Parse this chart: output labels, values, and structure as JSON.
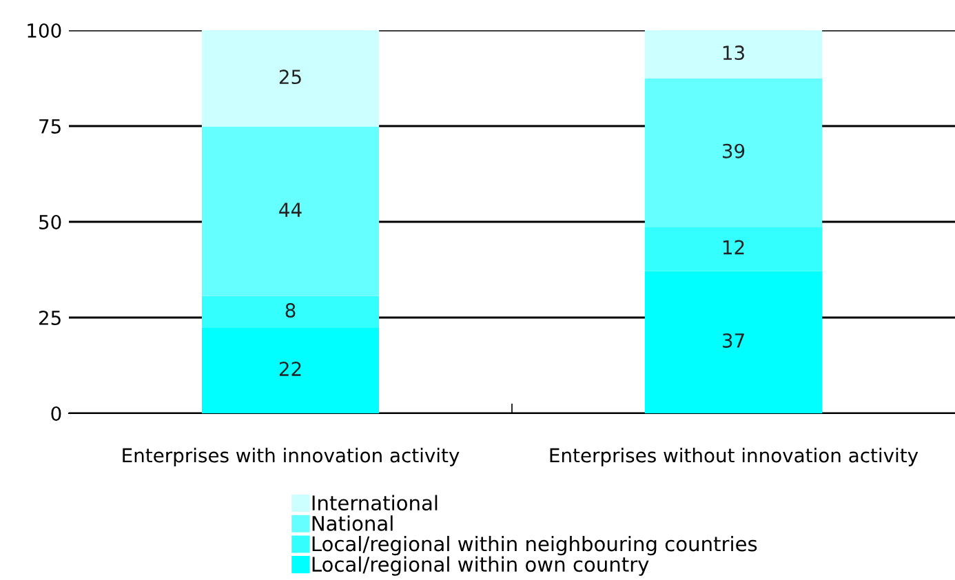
{
  "chart_data": {
    "type": "bar",
    "stacked": true,
    "categories": [
      "Enterprises with innovation activity",
      "Enterprises without innovation activity"
    ],
    "series": [
      {
        "name": "Local/regional within own country",
        "color": "#00ffff",
        "values": [
          22.3,
          37.1
        ],
        "value_labels": [
          "22",
          "37"
        ]
      },
      {
        "name": "Local/regional within neighbouring countries",
        "color": "#33ffff",
        "values": [
          8.3,
          11.6
        ],
        "value_labels": [
          "8",
          "12"
        ]
      },
      {
        "name": "National",
        "color": "#66ffff",
        "values": [
          44.2,
          38.7
        ],
        "value_labels": [
          "44",
          "39"
        ]
      },
      {
        "name": "International",
        "color": "#ccffff",
        "values": [
          25.2,
          12.6
        ],
        "value_labels": [
          "25",
          "13"
        ]
      }
    ],
    "ylim": [
      0,
      100
    ],
    "yticks": [
      0,
      25,
      50,
      75,
      100
    ],
    "grid": "y",
    "legend": "bottom"
  }
}
